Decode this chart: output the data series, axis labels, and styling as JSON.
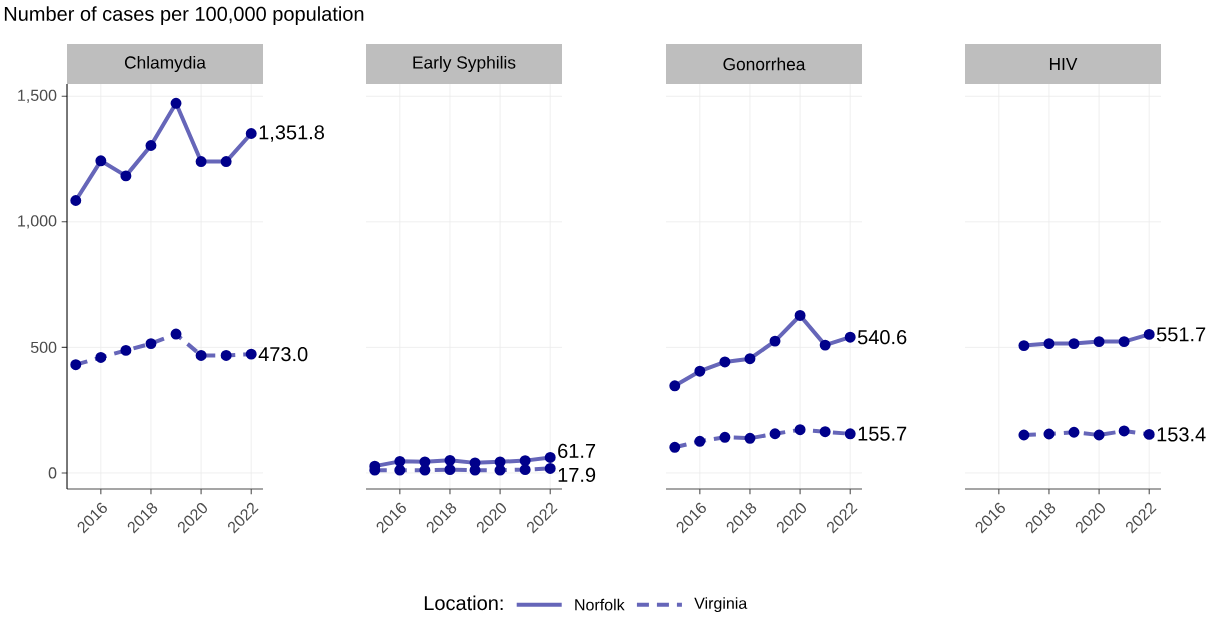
{
  "chart_data": [
    {
      "type": "line",
      "title": "Chlamydia",
      "subtitle": "Number of cases per 100,000 population",
      "legend_title": "Location:",
      "legend": "bottom",
      "marker": "circle",
      "grid": true,
      "x": [
        2015,
        2016,
        2017,
        2018,
        2019,
        2020,
        2021,
        2022
      ],
      "series": [
        {
          "name": "Norfolk",
          "color": "#00008b",
          "line_style": "solid",
          "values": [
            1085,
            1243,
            1183,
            1304,
            1472,
            1240,
            1240,
            1351.8
          ],
          "value_labels": [
            null,
            null,
            null,
            null,
            null,
            null,
            null,
            "1,351.8"
          ]
        },
        {
          "name": "Virginia",
          "color": "#00008b",
          "line_style": "dashed",
          "values": [
            431,
            460,
            488,
            515,
            553,
            468,
            468,
            473.0
          ],
          "value_labels": [
            null,
            null,
            null,
            null,
            null,
            null,
            null,
            "473.0"
          ]
        }
      ],
      "xlim": [
        2014.65,
        2022.47
      ],
      "ylim": [
        -64,
        1549
      ],
      "xticks": [
        2016,
        2018,
        2020,
        2022
      ],
      "yticks": [
        0,
        500,
        {
          "value": 1000,
          "label": "1,000"
        },
        {
          "value": 1500,
          "label": "1,500"
        }
      ]
    },
    {
      "type": "line",
      "title": "Early Syphilis",
      "marker": "circle",
      "grid": true,
      "tick_labels": "x",
      "x": [
        2015,
        2016,
        2017,
        2018,
        2019,
        2020,
        2021,
        2022
      ],
      "series": [
        {
          "color": "#00008b",
          "line_style": "solid",
          "values": [
            27,
            46,
            44,
            50,
            40,
            44,
            49,
            61.7
          ],
          "value_labels": [
            null,
            null,
            null,
            null,
            null,
            null,
            null,
            "61.7"
          ]
        },
        {
          "color": "#00008b",
          "line_style": "dashed",
          "values": [
            11,
            11,
            11,
            13,
            11,
            11,
            13,
            17.9
          ],
          "value_labels": [
            null,
            null,
            null,
            null,
            null,
            null,
            null,
            "17.9"
          ]
        }
      ],
      "xlim": [
        2014.65,
        2022.47
      ],
      "ylim": [
        -64,
        1549
      ],
      "xticks": [
        2016,
        2018,
        2020,
        2022
      ],
      "yticks": [
        0,
        500,
        1000,
        1500
      ]
    },
    {
      "type": "line",
      "title": "Gonorrhea",
      "marker": "circle",
      "grid": true,
      "tick_labels": "x",
      "x": [
        2015,
        2016,
        2017,
        2018,
        2019,
        2020,
        2021,
        2022
      ],
      "series": [
        {
          "color": "#00008b",
          "line_style": "solid",
          "values": [
            347,
            405,
            442,
            455,
            525,
            627,
            509,
            540.6
          ],
          "value_labels": [
            null,
            null,
            null,
            null,
            null,
            null,
            null,
            "540.6"
          ]
        },
        {
          "color": "#00008b",
          "line_style": "dashed",
          "values": [
            102,
            126,
            142,
            138,
            156,
            172,
            164,
            155.7
          ],
          "value_labels": [
            null,
            null,
            null,
            null,
            null,
            null,
            null,
            "155.7"
          ]
        }
      ],
      "xlim": [
        2014.65,
        2022.47
      ],
      "ylim": [
        -64,
        1549
      ],
      "xticks": [
        2016,
        2018,
        2020,
        2022
      ],
      "yticks": [
        0,
        500,
        1000,
        1500
      ]
    },
    {
      "type": "line",
      "title": "HIV",
      "marker": "circle",
      "grid": true,
      "tick_labels": "x",
      "x": [
        2017,
        2018,
        2019,
        2020,
        2021,
        2022
      ],
      "series": [
        {
          "color": "#00008b",
          "line_style": "solid",
          "values": [
            507,
            515,
            515,
            523,
            523,
            551.7
          ],
          "value_labels": [
            null,
            null,
            null,
            null,
            null,
            "551.7"
          ]
        },
        {
          "color": "#00008b",
          "line_style": "dashed",
          "values": [
            151,
            155,
            162,
            151,
            167,
            153.4
          ],
          "value_labels": [
            null,
            null,
            null,
            null,
            null,
            "153.4"
          ]
        }
      ],
      "xlim": [
        2014.65,
        2022.47
      ],
      "ylim": [
        -64,
        1549
      ],
      "xticks": [
        2016,
        2018,
        2020,
        2022
      ],
      "yticks": [
        0,
        500,
        1000,
        1500
      ]
    }
  ]
}
